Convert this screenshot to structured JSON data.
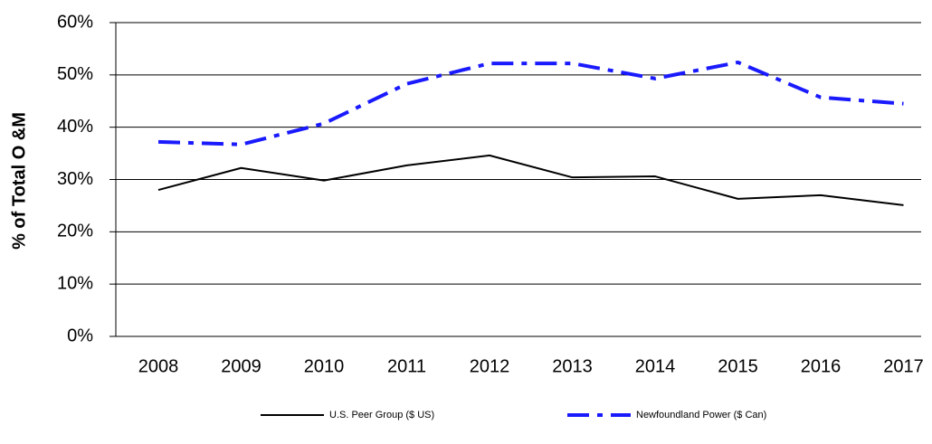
{
  "chart_data": {
    "type": "line",
    "y_label": "% of Total O &M",
    "categories": [
      "2008",
      "2009",
      "2010",
      "2011",
      "2012",
      "2013",
      "2014",
      "2015",
      "2016",
      "2017"
    ],
    "series": [
      {
        "name": "U.S. Peer Group ($ US)",
        "color": "#000000",
        "style": "solid",
        "values": [
          28.0,
          32.2,
          29.8,
          32.7,
          34.6,
          30.4,
          30.6,
          26.3,
          27.0,
          25.1
        ]
      },
      {
        "name": "Newfoundland Power ($ Can)",
        "color": "#1a1aff",
        "style": "dash-dot",
        "values": [
          37.2,
          36.7,
          40.7,
          48.3,
          52.2,
          52.2,
          49.3,
          52.4,
          45.7,
          44.5
        ]
      }
    ],
    "ylim": [
      0,
      60
    ],
    "yticks": [
      {
        "value": 0,
        "label": "0%"
      },
      {
        "value": 10,
        "label": "10%"
      },
      {
        "value": 20,
        "label": "20%"
      },
      {
        "value": 30,
        "label": "30%"
      },
      {
        "value": 40,
        "label": "40%"
      },
      {
        "value": 50,
        "label": "50%"
      },
      {
        "value": 60,
        "label": "60%"
      }
    ],
    "grid": true,
    "legend": "bottom"
  }
}
